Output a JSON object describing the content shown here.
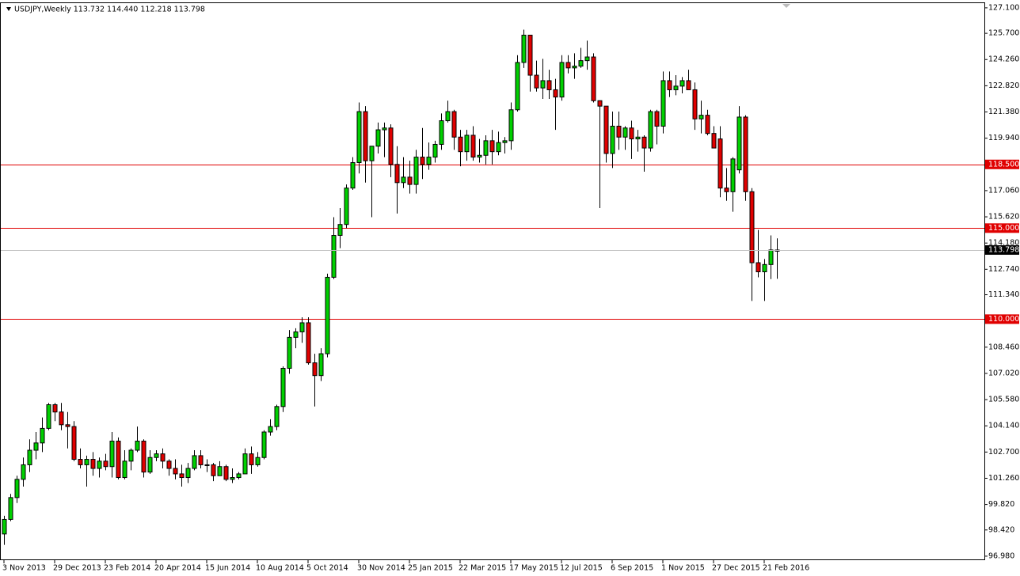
{
  "chart_data": {
    "type": "candlestick",
    "title": "USDJPY,Weekly  113.732 114.440 112.218 113.798",
    "categories": [
      "3 Nov 2013",
      null,
      null,
      null,
      null,
      null,
      null,
      null,
      "29 Dec 2013",
      null,
      null,
      null,
      null,
      null,
      null,
      null,
      "23 Feb 2014",
      null,
      null,
      null,
      null,
      null,
      null,
      null,
      "20 Apr 2014",
      null,
      null,
      null,
      null,
      null,
      null,
      null,
      "15 Jun 2014",
      null,
      null,
      null,
      null,
      null,
      null,
      null,
      "10 Aug 2014",
      null,
      null,
      null,
      null,
      null,
      null,
      null,
      "5 Oct 2014",
      null,
      null,
      null,
      null,
      null,
      null,
      null,
      "30 Nov 2014",
      null,
      null,
      null,
      null,
      null,
      null,
      null,
      "25 Jan 2015",
      null,
      null,
      null,
      null,
      null,
      null,
      null,
      "22 Mar 2015",
      null,
      null,
      null,
      null,
      null,
      null,
      null,
      "17 May 2015",
      null,
      null,
      null,
      null,
      null,
      null,
      null,
      "12 Jul 2015",
      null,
      null,
      null,
      null,
      null,
      null,
      null,
      "6 Sep 2015",
      null,
      null,
      null,
      null,
      null,
      null,
      null,
      "1 Nov 2015",
      null,
      null,
      null,
      null,
      null,
      null,
      null,
      "27 Dec 2015",
      null,
      null,
      null,
      null,
      null,
      null,
      null,
      "21 Feb 2016",
      null,
      null
    ],
    "open": [
      98.2,
      99.0,
      100.2,
      101.2,
      102.0,
      102.8,
      103.2,
      104.0,
      105.3,
      104.9,
      104.2,
      104.1,
      102.3,
      102.0,
      102.3,
      101.8,
      102.2,
      101.9,
      103.3,
      101.3,
      102.2,
      102.8,
      103.3,
      101.6,
      102.4,
      102.6,
      102.2,
      101.8,
      101.5,
      101.3,
      101.8,
      102.5,
      102.0,
      102.0,
      101.4,
      101.9,
      101.2,
      101.3,
      101.5,
      102.6,
      102.0,
      102.4,
      103.8,
      104.1,
      105.2,
      107.3,
      109.0,
      109.3,
      109.8,
      107.6,
      106.9,
      108.1,
      112.3,
      114.6,
      115.2,
      117.2,
      118.6,
      121.4,
      118.7,
      119.5,
      120.4,
      120.5,
      118.5,
      117.5,
      117.8,
      117.4,
      118.9,
      118.5,
      118.9,
      119.6,
      120.9,
      121.4,
      120.0,
      119.2,
      120.1,
      118.9,
      119.0,
      119.8,
      119.2,
      119.7,
      119.8,
      121.5,
      124.1,
      125.6,
      123.4,
      122.7,
      123.1,
      122.6,
      122.2,
      124.1,
      123.8,
      123.9,
      124.2,
      124.4,
      122.0,
      121.7,
      119.1,
      120.6,
      120.0,
      120.5,
      119.9,
      120.0,
      119.4,
      121.4,
      120.6,
      123.1,
      122.6,
      122.8,
      123.1,
      122.6,
      121.0,
      121.2,
      120.2,
      119.9,
      117.2,
      117.0,
      118.2,
      121.1,
      117.0,
      113.1,
      112.6,
      113.0,
      113.732
    ],
    "high": [
      99.2,
      100.4,
      101.4,
      102.4,
      103.4,
      103.8,
      104.6,
      105.4,
      105.4,
      105.4,
      104.9,
      104.4,
      102.9,
      102.5,
      102.7,
      102.4,
      102.6,
      103.8,
      103.5,
      102.8,
      102.9,
      104.1,
      103.4,
      102.8,
      102.8,
      102.9,
      102.3,
      102.3,
      102.0,
      102.1,
      102.8,
      102.8,
      102.3,
      102.1,
      102.2,
      102.0,
      101.8,
      101.6,
      102.9,
      103.0,
      102.7,
      103.9,
      104.5,
      105.3,
      107.4,
      109.4,
      109.5,
      110.1,
      110.1,
      108.1,
      108.4,
      112.5,
      115.6,
      116.1,
      117.4,
      118.9,
      121.9,
      121.7,
      119.5,
      120.8,
      120.8,
      120.7,
      119.5,
      118.9,
      118.7,
      119.3,
      120.5,
      119.7,
      119.8,
      121.3,
      122.0,
      121.5,
      120.4,
      120.4,
      120.6,
      119.9,
      120.1,
      120.4,
      120.3,
      120.0,
      121.9,
      124.5,
      125.9,
      125.6,
      124.2,
      124.3,
      123.7,
      123.2,
      124.5,
      124.5,
      124.6,
      124.9,
      125.3,
      124.6,
      122.0,
      121.7,
      121.4,
      121.4,
      120.6,
      120.9,
      120.4,
      120.1,
      121.5,
      121.5,
      123.6,
      123.6,
      123.4,
      123.3,
      123.7,
      123.0,
      122.0,
      121.5,
      120.6,
      120.6,
      118.3,
      118.9,
      121.7,
      121.2,
      117.2,
      114.9,
      113.3,
      114.6,
      114.44
    ],
    "low": [
      97.6,
      98.9,
      99.9,
      100.8,
      101.6,
      102.3,
      102.7,
      103.9,
      104.4,
      103.9,
      102.9,
      102.2,
      101.8,
      100.8,
      101.4,
      101.3,
      101.7,
      101.3,
      101.2,
      101.2,
      101.7,
      102.7,
      101.3,
      101.5,
      102.2,
      101.8,
      101.4,
      101.2,
      100.8,
      101.0,
      101.7,
      101.8,
      101.6,
      101.1,
      101.4,
      101.1,
      101.0,
      101.2,
      101.5,
      101.5,
      101.9,
      102.3,
      103.6,
      103.9,
      104.9,
      107.0,
      108.4,
      108.7,
      107.5,
      105.2,
      106.6,
      107.9,
      112.2,
      113.9,
      115.0,
      117.1,
      118.0,
      117.5,
      115.6,
      119.1,
      118.9,
      117.8,
      115.8,
      117.2,
      116.9,
      116.9,
      117.7,
      118.2,
      118.6,
      119.3,
      120.8,
      119.3,
      118.4,
      118.7,
      118.7,
      118.6,
      118.5,
      118.5,
      119.0,
      119.1,
      119.3,
      121.4,
      123.8,
      122.5,
      122.5,
      122.1,
      122.1,
      120.4,
      122.0,
      123.5,
      123.2,
      123.8,
      123.7,
      121.9,
      116.1,
      118.6,
      118.3,
      119.3,
      119.3,
      118.8,
      119.2,
      118.1,
      119.2,
      119.6,
      120.2,
      122.2,
      122.3,
      122.4,
      122.6,
      120.4,
      120.2,
      120.1,
      119.4,
      116.7,
      116.5,
      115.9,
      118.0,
      116.5,
      111.0,
      112.3,
      111.0,
      112.2,
      112.218
    ],
    "close": [
      99.0,
      100.2,
      101.2,
      102.0,
      102.8,
      103.2,
      104.0,
      105.3,
      104.9,
      104.2,
      104.1,
      102.3,
      102.0,
      102.3,
      101.8,
      102.2,
      101.9,
      103.3,
      101.3,
      102.2,
      102.8,
      103.3,
      101.6,
      102.4,
      102.6,
      102.2,
      101.8,
      101.5,
      101.3,
      101.8,
      102.5,
      102.0,
      102.0,
      101.4,
      101.9,
      101.2,
      101.3,
      101.5,
      102.6,
      102.0,
      102.4,
      103.8,
      104.1,
      105.2,
      107.3,
      109.0,
      109.3,
      109.8,
      107.6,
      106.9,
      108.1,
      112.3,
      114.6,
      115.2,
      117.2,
      118.6,
      121.4,
      118.7,
      119.5,
      120.4,
      120.5,
      118.5,
      117.5,
      117.8,
      117.4,
      118.9,
      118.5,
      118.9,
      119.6,
      120.9,
      121.4,
      120.0,
      119.2,
      120.1,
      118.9,
      119.0,
      119.8,
      119.2,
      119.7,
      119.8,
      121.5,
      124.1,
      125.6,
      123.4,
      122.7,
      123.1,
      122.6,
      122.2,
      124.1,
      123.8,
      123.9,
      124.2,
      124.4,
      122.0,
      121.7,
      119.1,
      120.6,
      120.0,
      120.5,
      119.9,
      120.0,
      119.4,
      121.4,
      120.6,
      123.1,
      122.6,
      122.8,
      123.1,
      122.6,
      121.0,
      121.2,
      120.2,
      119.4,
      117.2,
      117.0,
      118.8,
      121.1,
      117.0,
      113.1,
      112.6,
      113.0,
      113.8,
      113.798
    ],
    "up_color": "#00d000",
    "down_color": "#e00000",
    "ylim": [
      96.76,
      127.4
    ],
    "yticks": [
      {
        "value": 127.1,
        "label": "127.100"
      },
      {
        "value": 125.7,
        "label": "125.700"
      },
      {
        "value": 124.26,
        "label": "124.260"
      },
      {
        "value": 122.82,
        "label": "122.820"
      },
      {
        "value": 121.38,
        "label": "121.380"
      },
      {
        "value": 119.94,
        "label": "119.940"
      },
      {
        "value": 117.06,
        "label": "117.060"
      },
      {
        "value": 115.62,
        "label": "115.620"
      },
      {
        "value": 114.18,
        "label": "114.180"
      },
      {
        "value": 112.74,
        "label": "112.740"
      },
      {
        "value": 111.34,
        "label": "111.340"
      },
      {
        "value": 108.46,
        "label": "108.460"
      },
      {
        "value": 107.02,
        "label": "107.020"
      },
      {
        "value": 105.58,
        "label": "105.580"
      },
      {
        "value": 104.14,
        "label": "104.140"
      },
      {
        "value": 102.7,
        "label": "102.700"
      },
      {
        "value": 101.26,
        "label": "101.260"
      },
      {
        "value": 99.82,
        "label": "99.820"
      },
      {
        "value": 98.42,
        "label": "98.420"
      },
      {
        "value": 96.98,
        "label": "96.980"
      }
    ],
    "levels": [
      {
        "value": 118.5,
        "label": "118.500"
      },
      {
        "value": 115,
        "label": "115.000"
      },
      {
        "value": 110,
        "label": "110.000"
      }
    ],
    "level_color": "#e00000",
    "last_price": {
      "value": 113.798,
      "label": "113.798"
    }
  }
}
